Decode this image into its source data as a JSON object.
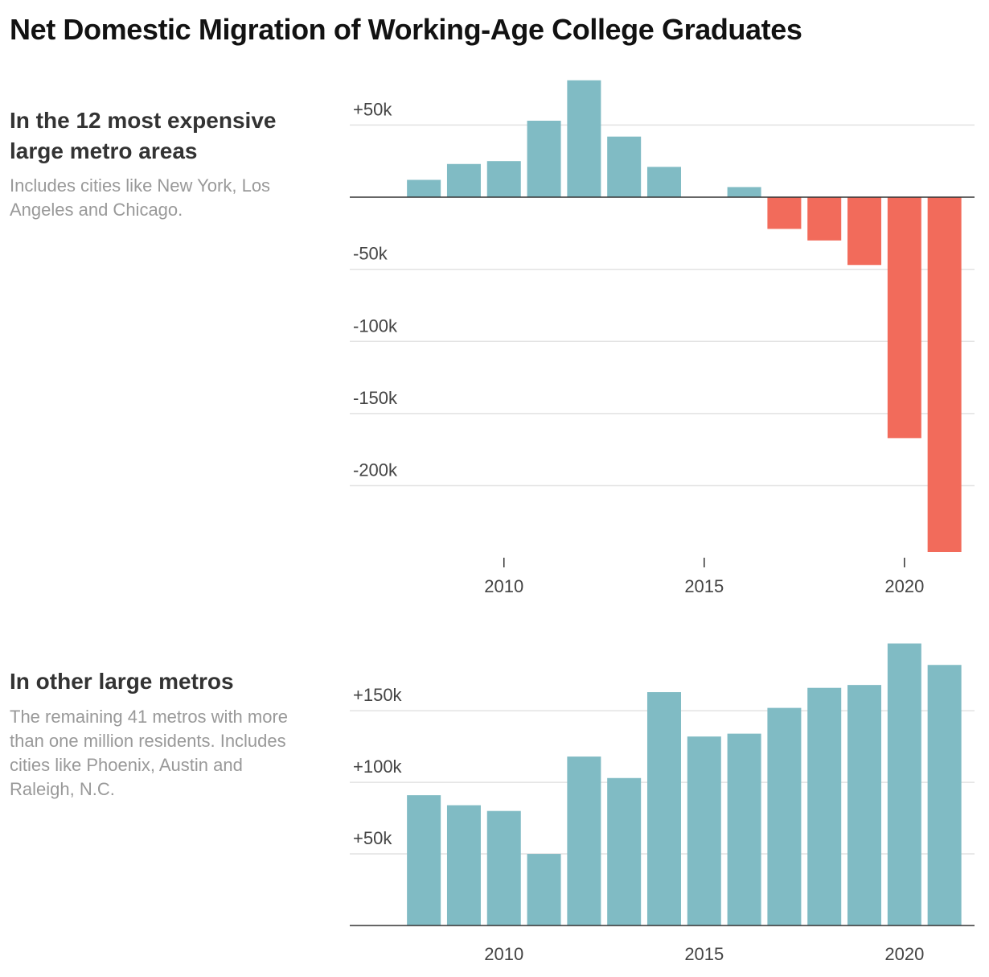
{
  "title": "Net Domestic Migration of Working-Age College Graduates",
  "colors": {
    "positive": "#80bbc4",
    "negative": "#f26b5b",
    "gridline": "#e2e2e2",
    "axis": "#333333"
  },
  "chart_data": [
    {
      "type": "bar",
      "heading": "In the 12 most expensive large metro areas",
      "subtitle": "Includes cities like New York, Los Angeles and Chicago.",
      "x": [
        2008,
        2009,
        2010,
        2011,
        2012,
        2013,
        2014,
        2015,
        2016,
        2017,
        2018,
        2019,
        2020,
        2021
      ],
      "values": [
        12,
        23,
        25,
        53,
        81,
        42,
        21,
        0,
        7,
        -22,
        -30,
        -47,
        -167,
        -246
      ],
      "ylim": [
        -246,
        82
      ],
      "xlim": [
        2006.15,
        2021.75
      ],
      "y_ticks": [
        50,
        -50,
        -100,
        -150,
        -200
      ],
      "y_tick_labels": [
        "+50k",
        "-50k",
        "-100k",
        "-150k",
        "-200k"
      ],
      "x_ticks": [
        2010,
        2015,
        2020
      ],
      "x_tick_labels": [
        "2010",
        "2015",
        "2020"
      ],
      "grid": true
    },
    {
      "type": "bar",
      "heading": "In other large metros",
      "subtitle": "The remaining 41 metros with more than one million residents. Includes cities like Phoenix, Austin and Raleigh, N.C.",
      "x": [
        2008,
        2009,
        2010,
        2011,
        2012,
        2013,
        2014,
        2015,
        2016,
        2017,
        2018,
        2019,
        2020,
        2021
      ],
      "values": [
        91,
        84,
        80,
        50,
        118,
        103,
        163,
        132,
        134,
        152,
        166,
        168,
        197,
        182
      ],
      "ylim": [
        0,
        199
      ],
      "xlim": [
        2006.15,
        2021.75
      ],
      "y_ticks": [
        150,
        100,
        50
      ],
      "y_tick_labels": [
        "+150k",
        "+100k",
        "+50k"
      ],
      "x_ticks": [
        2010,
        2015,
        2020
      ],
      "x_tick_labels": [
        "2010",
        "2015",
        "2020"
      ],
      "grid": true
    }
  ]
}
